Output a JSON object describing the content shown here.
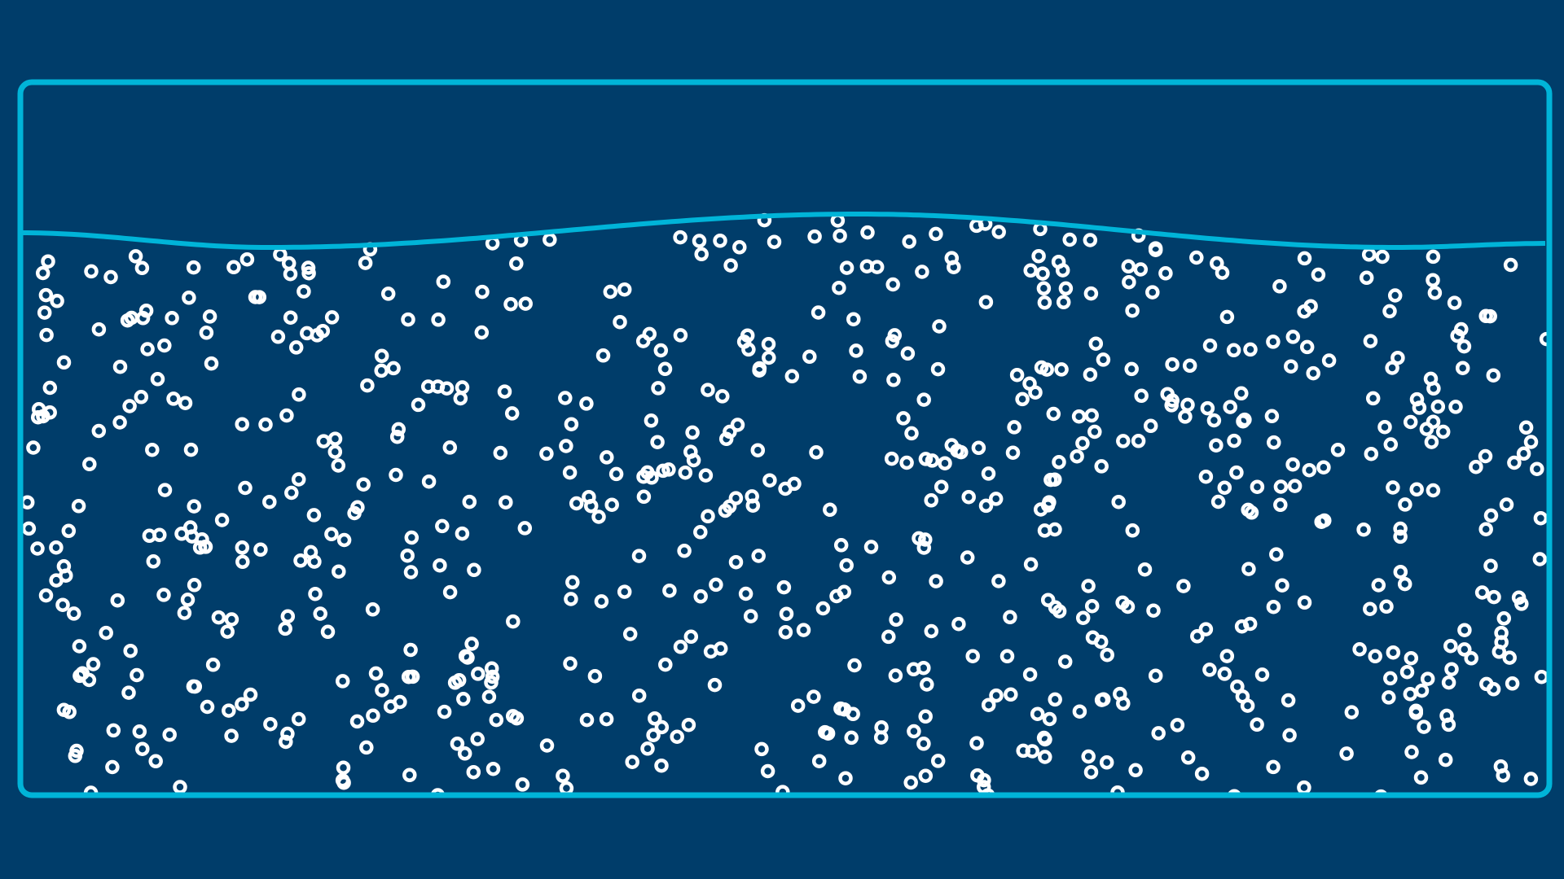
{
  "colors": {
    "background": "#003d6a",
    "container_border": "#00b4d8",
    "wave_line": "#00b4d8",
    "particle": "#ffffff"
  },
  "simulation": {
    "particle_shape": "ring",
    "surface": "wave"
  }
}
